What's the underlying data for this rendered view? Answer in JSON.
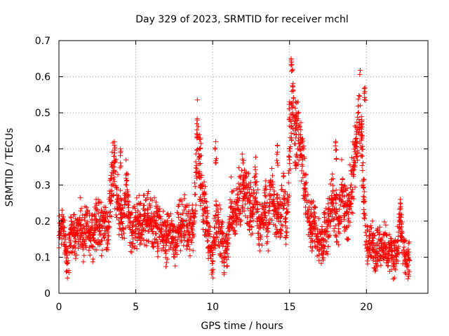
{
  "chart_data": {
    "type": "scatter",
    "title": "Day 329 of 2023, SRMTID for receiver mchl",
    "xlabel": "GPS time / hours",
    "ylabel": "SRMTID / TECUs",
    "xlim": [
      0,
      24
    ],
    "ylim": [
      0,
      0.7
    ],
    "x_ticks": [
      0,
      5,
      10,
      15,
      20
    ],
    "y_ticks": [
      0,
      0.1,
      0.2,
      0.3,
      0.4,
      0.5,
      0.6,
      0.7
    ],
    "x_tick_labels": [
      "0",
      "5",
      "10",
      "15",
      "20"
    ],
    "y_tick_labels": [
      "0",
      "0.1",
      "0.2",
      "0.3",
      "0.4",
      "0.5",
      "0.6",
      "0.7"
    ],
    "grid": true,
    "marker": "+",
    "color": "#ff0000",
    "series": [
      {
        "name": "SRMTID",
        "x": [
          0.0,
          0.2,
          0.4,
          0.6,
          0.8,
          1.0,
          1.2,
          1.4,
          1.6,
          1.8,
          2.0,
          2.2,
          2.4,
          2.6,
          2.8,
          3.0,
          3.2,
          3.4,
          3.6,
          3.8,
          4.0,
          4.2,
          4.4,
          4.6,
          4.8,
          5.0,
          5.2,
          5.4,
          5.6,
          5.8,
          6.0,
          6.2,
          6.4,
          6.6,
          6.8,
          7.0,
          7.2,
          7.4,
          7.6,
          7.8,
          8.0,
          8.2,
          8.4,
          8.6,
          8.8,
          9.0,
          9.2,
          9.4,
          9.6,
          9.8,
          10.0,
          10.2,
          10.4,
          10.6,
          10.8,
          11.0,
          11.2,
          11.4,
          11.6,
          11.8,
          12.0,
          12.2,
          12.4,
          12.6,
          12.8,
          13.0,
          13.2,
          13.4,
          13.6,
          13.8,
          14.0,
          14.2,
          14.4,
          14.6,
          14.8,
          15.0,
          15.2,
          15.4,
          15.6,
          15.8,
          16.0,
          16.2,
          16.4,
          16.6,
          16.8,
          17.0,
          17.2,
          17.4,
          17.6,
          17.8,
          18.0,
          18.2,
          18.4,
          18.6,
          18.8,
          19.0,
          19.2,
          19.4,
          19.6,
          19.8,
          20.0,
          20.2,
          20.4,
          20.6,
          20.8,
          21.0,
          21.2,
          21.4,
          21.6,
          21.8,
          22.0,
          22.2,
          22.4,
          22.6,
          22.8
        ],
        "y": [
          0.16,
          0.2,
          0.13,
          0.09,
          0.18,
          0.17,
          0.16,
          0.19,
          0.15,
          0.18,
          0.17,
          0.16,
          0.2,
          0.19,
          0.18,
          0.2,
          0.17,
          0.3,
          0.35,
          0.26,
          0.22,
          0.18,
          0.3,
          0.2,
          0.17,
          0.19,
          0.21,
          0.17,
          0.22,
          0.21,
          0.19,
          0.2,
          0.18,
          0.17,
          0.16,
          0.14,
          0.18,
          0.15,
          0.13,
          0.19,
          0.18,
          0.2,
          0.17,
          0.18,
          0.2,
          0.44,
          0.3,
          0.25,
          0.2,
          0.13,
          0.09,
          0.2,
          0.18,
          0.15,
          0.1,
          0.14,
          0.25,
          0.2,
          0.26,
          0.28,
          0.3,
          0.27,
          0.25,
          0.22,
          0.3,
          0.18,
          0.2,
          0.25,
          0.18,
          0.3,
          0.24,
          0.22,
          0.2,
          0.26,
          0.16,
          0.4,
          0.5,
          0.45,
          0.44,
          0.38,
          0.3,
          0.22,
          0.18,
          0.2,
          0.15,
          0.14,
          0.15,
          0.17,
          0.2,
          0.26,
          0.22,
          0.2,
          0.3,
          0.25,
          0.2,
          0.3,
          0.35,
          0.42,
          0.52,
          0.3,
          0.16,
          0.12,
          0.14,
          0.1,
          0.15,
          0.12,
          0.13,
          0.11,
          0.12,
          0.1,
          0.11,
          0.2,
          0.12,
          0.08,
          0.09
        ],
        "highlights": [
          {
            "x": 3.6,
            "y": 0.42
          },
          {
            "x": 4.0,
            "y": 0.4
          },
          {
            "x": 9.0,
            "y": 0.48
          },
          {
            "x": 9.2,
            "y": 0.43
          },
          {
            "x": 10.2,
            "y": 0.42
          },
          {
            "x": 12.0,
            "y": 0.32
          },
          {
            "x": 14.2,
            "y": 0.41
          },
          {
            "x": 15.0,
            "y": 0.53
          },
          {
            "x": 15.1,
            "y": 0.65
          },
          {
            "x": 15.2,
            "y": 0.62
          },
          {
            "x": 15.4,
            "y": 0.49
          },
          {
            "x": 18.0,
            "y": 0.42
          },
          {
            "x": 19.3,
            "y": 0.46
          },
          {
            "x": 19.7,
            "y": 0.48
          },
          {
            "x": 19.9,
            "y": 0.57
          },
          {
            "x": 22.2,
            "y": 0.26
          }
        ]
      }
    ]
  }
}
